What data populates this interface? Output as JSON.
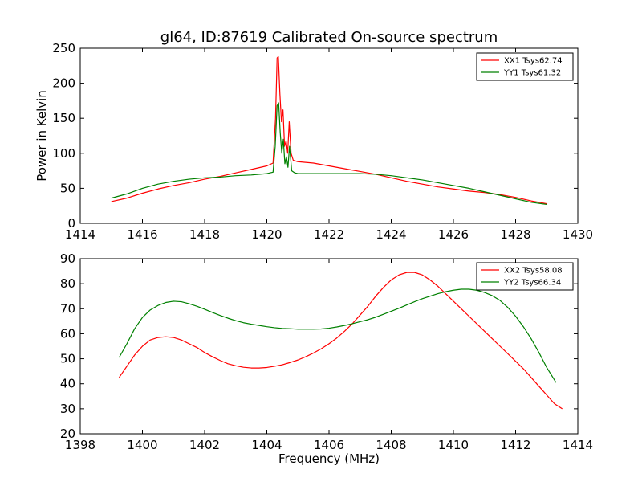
{
  "figure": {
    "title": "gl64, ID:87619 Calibrated On-source spectrum",
    "background": "#ffffff"
  },
  "chart_data": [
    {
      "type": "line",
      "title": "gl64, ID:87619 Calibrated On-source spectrum",
      "xlabel": "",
      "ylabel": "Power in Kelvin",
      "xlim": [
        1414,
        1430
      ],
      "ylim": [
        0,
        250
      ],
      "xticks": [
        1414,
        1416,
        1418,
        1420,
        1422,
        1424,
        1426,
        1428,
        1430
      ],
      "yticks": [
        0,
        50,
        100,
        150,
        200,
        250
      ],
      "grid": false,
      "legend_position": "top-right",
      "series": [
        {
          "name": "XX1 Tsys62.74",
          "color": "#ff0000",
          "points": [
            [
              1415.0,
              31
            ],
            [
              1415.5,
              36
            ],
            [
              1416.0,
              43
            ],
            [
              1416.5,
              49
            ],
            [
              1417.0,
              54
            ],
            [
              1417.5,
              58
            ],
            [
              1418.0,
              63
            ],
            [
              1418.5,
              67
            ],
            [
              1419.0,
              72
            ],
            [
              1419.5,
              77
            ],
            [
              1420.0,
              82
            ],
            [
              1420.2,
              86
            ],
            [
              1420.28,
              150
            ],
            [
              1420.33,
              236
            ],
            [
              1420.37,
              238
            ],
            [
              1420.42,
              185
            ],
            [
              1420.47,
              145
            ],
            [
              1420.52,
              162
            ],
            [
              1420.57,
              110
            ],
            [
              1420.62,
              118
            ],
            [
              1420.67,
              100
            ],
            [
              1420.72,
              145
            ],
            [
              1420.78,
              100
            ],
            [
              1420.85,
              90
            ],
            [
              1421.0,
              88
            ],
            [
              1421.5,
              86
            ],
            [
              1422.0,
              82
            ],
            [
              1422.5,
              78
            ],
            [
              1423.0,
              74
            ],
            [
              1423.5,
              70
            ],
            [
              1424.0,
              65
            ],
            [
              1424.5,
              60
            ],
            [
              1425.0,
              56
            ],
            [
              1425.5,
              52
            ],
            [
              1426.0,
              49
            ],
            [
              1426.5,
              46
            ],
            [
              1427.0,
              44
            ],
            [
              1427.5,
              41
            ],
            [
              1428.0,
              37
            ],
            [
              1428.5,
              32
            ],
            [
              1429.0,
              28
            ]
          ]
        },
        {
          "name": "YY1 Tsys61.32",
          "color": "#008000",
          "points": [
            [
              1415.0,
              36
            ],
            [
              1415.5,
              42
            ],
            [
              1416.0,
              50
            ],
            [
              1416.5,
              56
            ],
            [
              1417.0,
              60
            ],
            [
              1417.5,
              63
            ],
            [
              1418.0,
              65
            ],
            [
              1418.5,
              66
            ],
            [
              1419.0,
              68
            ],
            [
              1419.5,
              69
            ],
            [
              1420.0,
              71
            ],
            [
              1420.2,
              73
            ],
            [
              1420.27,
              110
            ],
            [
              1420.33,
              168
            ],
            [
              1420.38,
              172
            ],
            [
              1420.43,
              130
            ],
            [
              1420.48,
              100
            ],
            [
              1420.53,
              120
            ],
            [
              1420.58,
              85
            ],
            [
              1420.63,
              95
            ],
            [
              1420.68,
              80
            ],
            [
              1420.73,
              110
            ],
            [
              1420.8,
              75
            ],
            [
              1420.9,
              72
            ],
            [
              1421.0,
              71
            ],
            [
              1421.5,
              71
            ],
            [
              1422.0,
              71
            ],
            [
              1422.5,
              71
            ],
            [
              1423.0,
              71
            ],
            [
              1423.5,
              70
            ],
            [
              1424.0,
              68
            ],
            [
              1424.5,
              65
            ],
            [
              1425.0,
              62
            ],
            [
              1425.5,
              58
            ],
            [
              1426.0,
              54
            ],
            [
              1426.5,
              50
            ],
            [
              1427.0,
              45
            ],
            [
              1427.5,
              40
            ],
            [
              1428.0,
              35
            ],
            [
              1428.5,
              30
            ],
            [
              1429.0,
              27
            ]
          ]
        }
      ]
    },
    {
      "type": "line",
      "title": "",
      "xlabel": "Frequency (MHz)",
      "ylabel": "",
      "xlim": [
        1398,
        1414
      ],
      "ylim": [
        20,
        90
      ],
      "xticks": [
        1398,
        1400,
        1402,
        1404,
        1406,
        1408,
        1410,
        1412,
        1414
      ],
      "yticks": [
        20,
        30,
        40,
        50,
        60,
        70,
        80,
        90
      ],
      "grid": false,
      "legend_position": "top-right",
      "series": [
        {
          "name": "XX2 Tsys58.08",
          "color": "#ff0000",
          "points": [
            [
              1399.25,
              42.5
            ],
            [
              1399.5,
              47
            ],
            [
              1399.75,
              51.5
            ],
            [
              1400.0,
              55
            ],
            [
              1400.25,
              57.5
            ],
            [
              1400.5,
              58.5
            ],
            [
              1400.75,
              58.8
            ],
            [
              1401.0,
              58.5
            ],
            [
              1401.25,
              57.5
            ],
            [
              1401.5,
              56
            ],
            [
              1401.75,
              54.5
            ],
            [
              1402.0,
              52.5
            ],
            [
              1402.25,
              50.8
            ],
            [
              1402.5,
              49.3
            ],
            [
              1402.75,
              48
            ],
            [
              1403.0,
              47.2
            ],
            [
              1403.25,
              46.6
            ],
            [
              1403.5,
              46.3
            ],
            [
              1403.75,
              46.3
            ],
            [
              1404.0,
              46.5
            ],
            [
              1404.25,
              47
            ],
            [
              1404.5,
              47.6
            ],
            [
              1404.75,
              48.5
            ],
            [
              1405.0,
              49.5
            ],
            [
              1405.25,
              50.8
            ],
            [
              1405.5,
              52.3
            ],
            [
              1405.75,
              54
            ],
            [
              1406.0,
              56
            ],
            [
              1406.25,
              58.3
            ],
            [
              1406.5,
              61
            ],
            [
              1406.75,
              64
            ],
            [
              1407.0,
              67.5
            ],
            [
              1407.25,
              71
            ],
            [
              1407.5,
              75
            ],
            [
              1407.75,
              78.5
            ],
            [
              1408.0,
              81.5
            ],
            [
              1408.25,
              83.5
            ],
            [
              1408.5,
              84.5
            ],
            [
              1408.75,
              84.5
            ],
            [
              1409.0,
              83.5
            ],
            [
              1409.25,
              81.5
            ],
            [
              1409.5,
              79
            ],
            [
              1409.75,
              76
            ],
            [
              1410.0,
              73
            ],
            [
              1410.25,
              70
            ],
            [
              1410.5,
              67
            ],
            [
              1410.75,
              64
            ],
            [
              1411.0,
              61
            ],
            [
              1411.25,
              58
            ],
            [
              1411.5,
              55
            ],
            [
              1411.75,
              52
            ],
            [
              1412.0,
              49
            ],
            [
              1412.25,
              46
            ],
            [
              1412.5,
              42.5
            ],
            [
              1412.75,
              39
            ],
            [
              1413.0,
              35.5
            ],
            [
              1413.25,
              32
            ],
            [
              1413.5,
              30
            ]
          ]
        },
        {
          "name": "YY2 Tsys66.34",
          "color": "#008000",
          "points": [
            [
              1399.25,
              50.5
            ],
            [
              1399.5,
              56
            ],
            [
              1399.75,
              62
            ],
            [
              1400.0,
              66.5
            ],
            [
              1400.25,
              69.5
            ],
            [
              1400.5,
              71.3
            ],
            [
              1400.75,
              72.5
            ],
            [
              1401.0,
              73
            ],
            [
              1401.25,
              72.8
            ],
            [
              1401.5,
              72
            ],
            [
              1401.75,
              71
            ],
            [
              1402.0,
              69.8
            ],
            [
              1402.25,
              68.5
            ],
            [
              1402.5,
              67.3
            ],
            [
              1402.75,
              66.2
            ],
            [
              1403.0,
              65.2
            ],
            [
              1403.25,
              64.4
            ],
            [
              1403.5,
              63.8
            ],
            [
              1403.75,
              63.3
            ],
            [
              1404.0,
              62.8
            ],
            [
              1404.25,
              62.4
            ],
            [
              1404.5,
              62.1
            ],
            [
              1404.75,
              62
            ],
            [
              1405.0,
              61.8
            ],
            [
              1405.25,
              61.8
            ],
            [
              1405.5,
              61.8
            ],
            [
              1405.75,
              61.9
            ],
            [
              1406.0,
              62.2
            ],
            [
              1406.25,
              62.7
            ],
            [
              1406.5,
              63.3
            ],
            [
              1406.75,
              64
            ],
            [
              1407.0,
              64.8
            ],
            [
              1407.25,
              65.6
            ],
            [
              1407.5,
              66.6
            ],
            [
              1407.75,
              67.8
            ],
            [
              1408.0,
              69
            ],
            [
              1408.25,
              70.2
            ],
            [
              1408.5,
              71.5
            ],
            [
              1408.75,
              72.8
            ],
            [
              1409.0,
              74
            ],
            [
              1409.25,
              75
            ],
            [
              1409.5,
              76
            ],
            [
              1409.75,
              76.8
            ],
            [
              1410.0,
              77.4
            ],
            [
              1410.25,
              77.8
            ],
            [
              1410.5,
              77.8
            ],
            [
              1410.75,
              77.4
            ],
            [
              1411.0,
              76.5
            ],
            [
              1411.25,
              75.2
            ],
            [
              1411.5,
              73.3
            ],
            [
              1411.75,
              70.5
            ],
            [
              1412.0,
              67
            ],
            [
              1412.25,
              62.8
            ],
            [
              1412.5,
              58
            ],
            [
              1412.75,
              52.5
            ],
            [
              1413.0,
              46.5
            ],
            [
              1413.25,
              41.5
            ],
            [
              1413.3,
              40.5
            ]
          ]
        }
      ]
    }
  ]
}
